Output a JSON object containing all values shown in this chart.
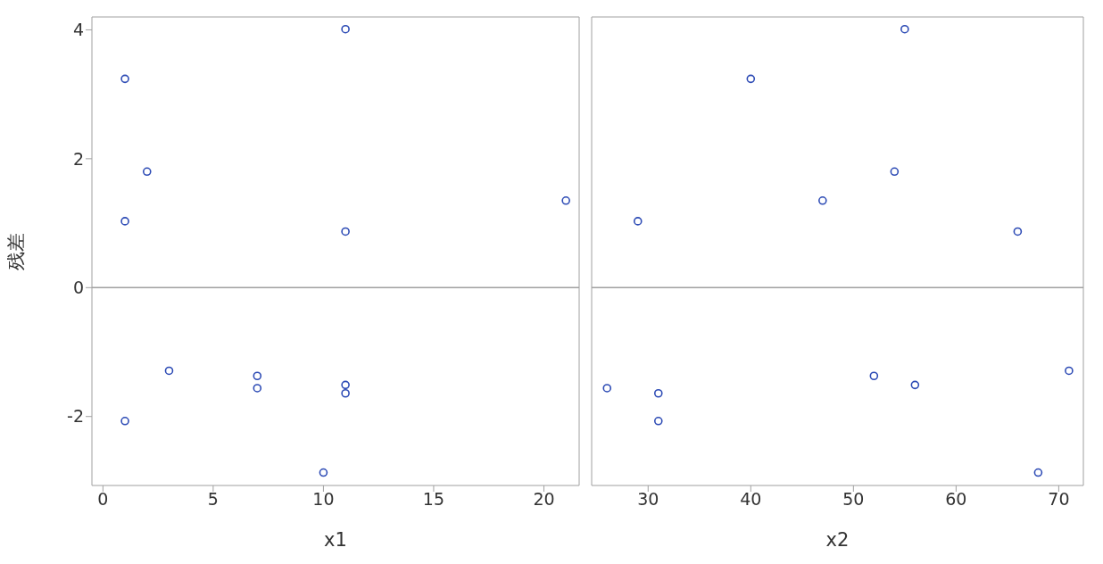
{
  "chart_data": [
    {
      "type": "scatter",
      "xlabel": "x1",
      "ylabel": "残差",
      "marker": "circle",
      "grid": false,
      "xlim": [
        -0.5,
        21.6
      ],
      "xticks": [
        0,
        5,
        10,
        15,
        20
      ],
      "ylim": [
        -3.07,
        4.2
      ],
      "yticks": [
        -2,
        0,
        2,
        4
      ],
      "x": [
        1,
        11,
        2,
        1,
        21,
        11,
        3,
        7,
        7,
        11,
        11,
        1,
        10
      ],
      "series": [
        {
          "color": "#2d4bb5",
          "values": [
            3.24,
            4.01,
            1.8,
            1.03,
            1.35,
            0.87,
            -1.29,
            -1.37,
            -1.56,
            -1.51,
            -1.64,
            -2.07,
            -2.87
          ]
        }
      ],
      "ref_lines": [
        {
          "axis": "y",
          "value": 0,
          "color": "#a0a0a0"
        }
      ]
    },
    {
      "type": "scatter",
      "xlabel": "x2",
      "marker": "circle",
      "grid": false,
      "tick_labels": "x",
      "xlim": [
        24.5,
        72.4
      ],
      "xticks": [
        30,
        40,
        50,
        60,
        70
      ],
      "ylim": [
        -3.07,
        4.2
      ],
      "yticks": [
        -2,
        0,
        2,
        4
      ],
      "x": [
        26,
        29,
        31,
        31,
        40,
        47,
        52,
        54,
        55,
        56,
        66,
        68,
        71
      ],
      "series": [
        {
          "color": "#2d4bb5",
          "values": [
            -1.56,
            1.03,
            -1.64,
            -2.07,
            3.24,
            1.35,
            -1.37,
            1.8,
            4.01,
            -1.51,
            0.87,
            -2.87,
            -1.29
          ]
        }
      ],
      "ref_lines": [
        {
          "axis": "y",
          "value": 0,
          "color": "#a0a0a0"
        }
      ]
    }
  ]
}
